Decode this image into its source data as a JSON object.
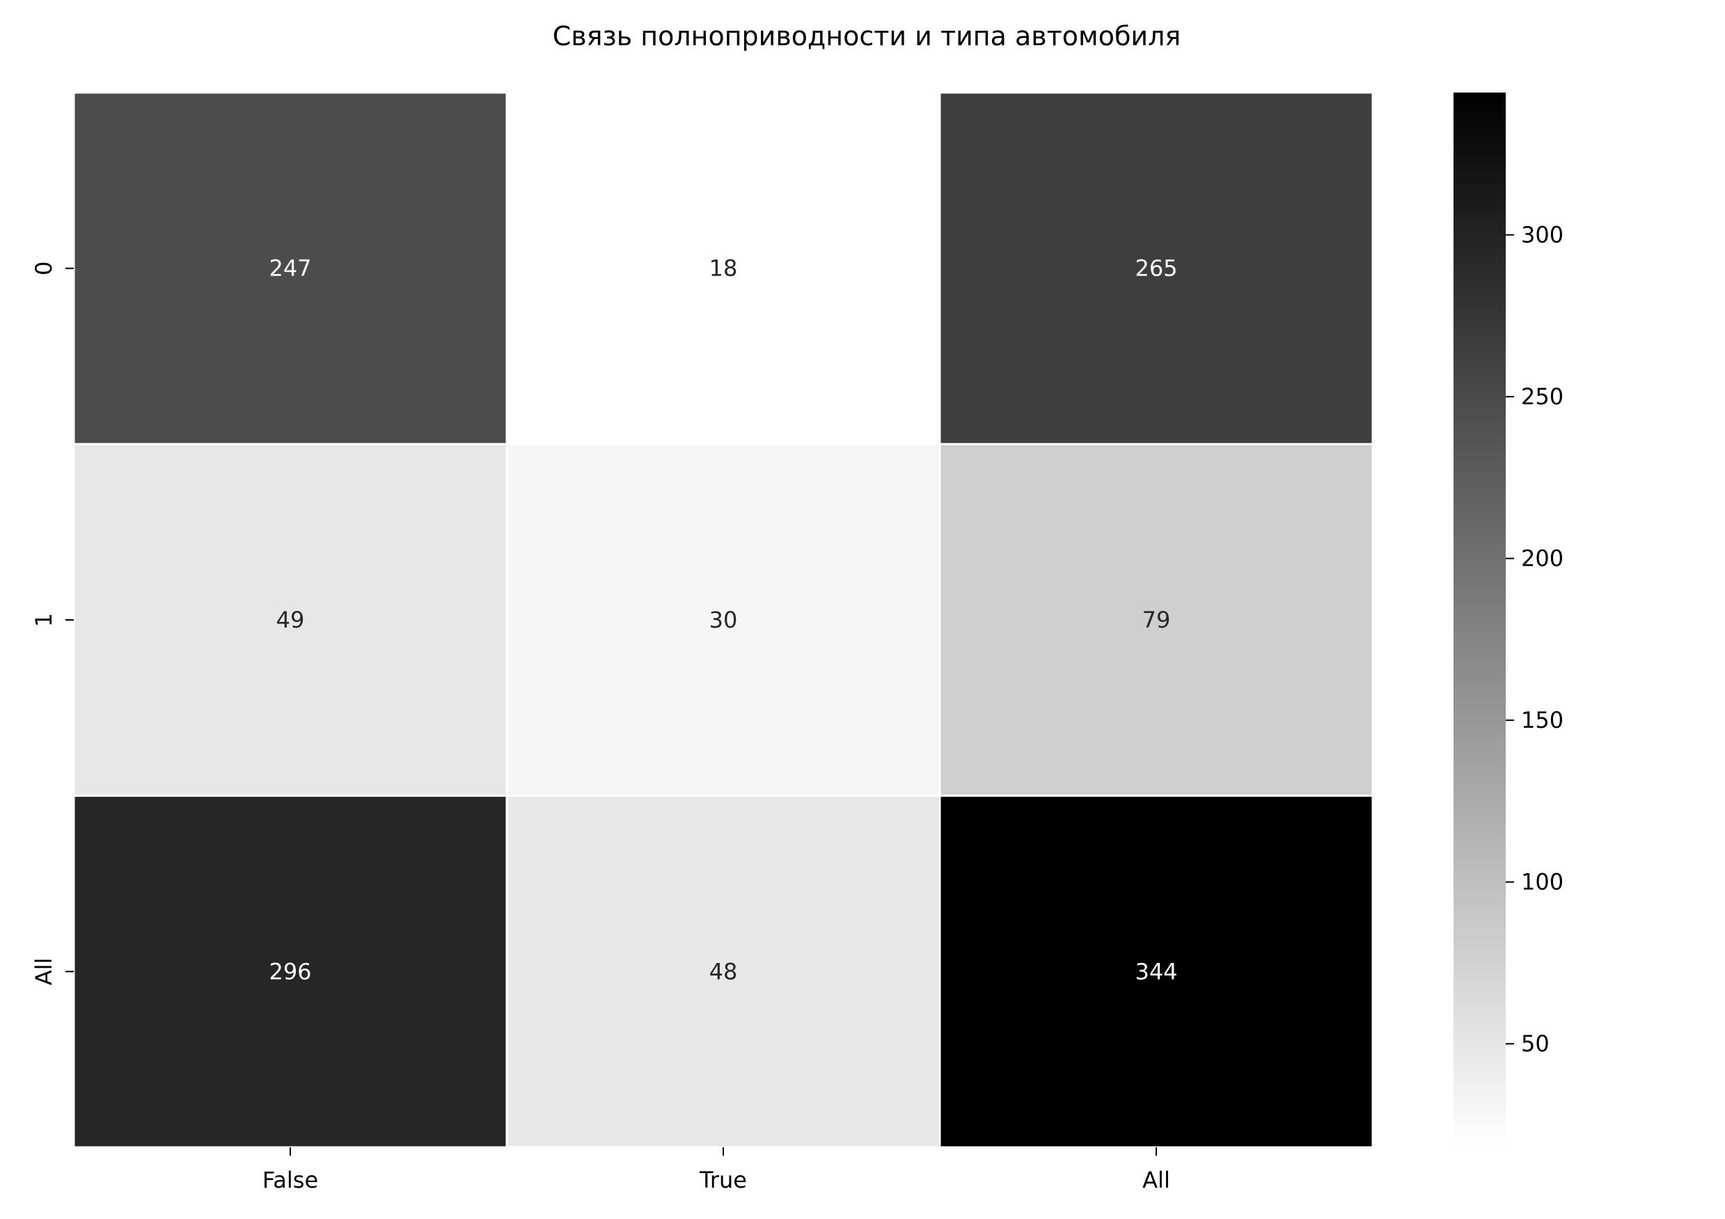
{
  "chart_data": {
    "type": "heatmap",
    "title": "Связь полноприводности и типа автомобиля",
    "xlabel": "",
    "ylabel": "",
    "x_categories": [
      "False",
      "True",
      "All"
    ],
    "y_categories": [
      "0",
      "1",
      "All"
    ],
    "values": [
      [
        247,
        18,
        265
      ],
      [
        49,
        30,
        79
      ],
      [
        296,
        48,
        344
      ]
    ],
    "value_labels": [
      [
        "247",
        "18",
        "265"
      ],
      [
        "49",
        "30",
        "79"
      ],
      [
        "296",
        "48",
        "344"
      ]
    ],
    "colormap": "Greys",
    "color_low": "#ffffff",
    "color_high": "#000000",
    "vmin": 18,
    "vmax": 344,
    "cell_border_color": "#ffffff",
    "colorbar": {
      "ticks": [
        50,
        100,
        150,
        200,
        250,
        300
      ],
      "tick_labels": [
        "50",
        "100",
        "150",
        "200",
        "250",
        "300"
      ],
      "placement": "right"
    }
  }
}
